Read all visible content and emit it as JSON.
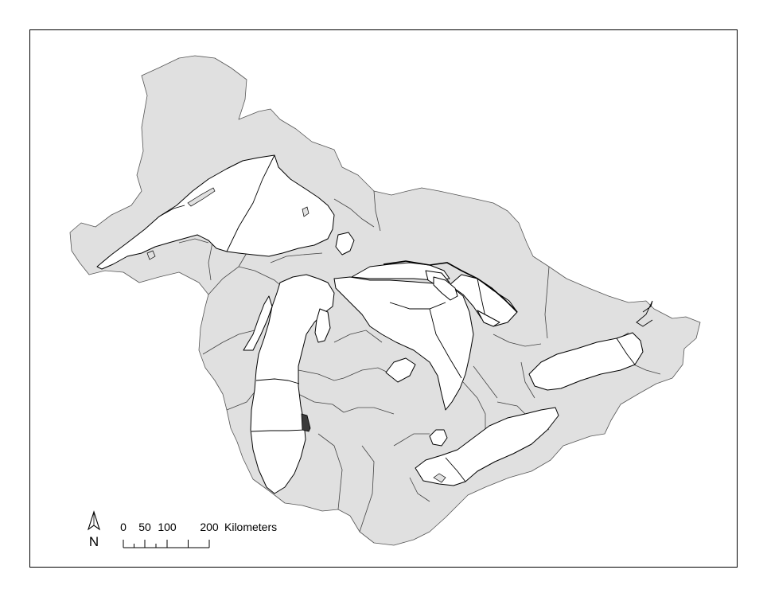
{
  "map": {
    "colors": {
      "land": "#e0e0e0",
      "water": "#ffffff",
      "outline": "#000000",
      "highlight": "#3a3a3a"
    },
    "north_arrow": {
      "label": "N",
      "icon": "north-arrow-icon"
    },
    "scale_bar": {
      "tick_labels": [
        "0",
        "50",
        "100",
        "200"
      ],
      "unit": "Kilometers"
    }
  }
}
